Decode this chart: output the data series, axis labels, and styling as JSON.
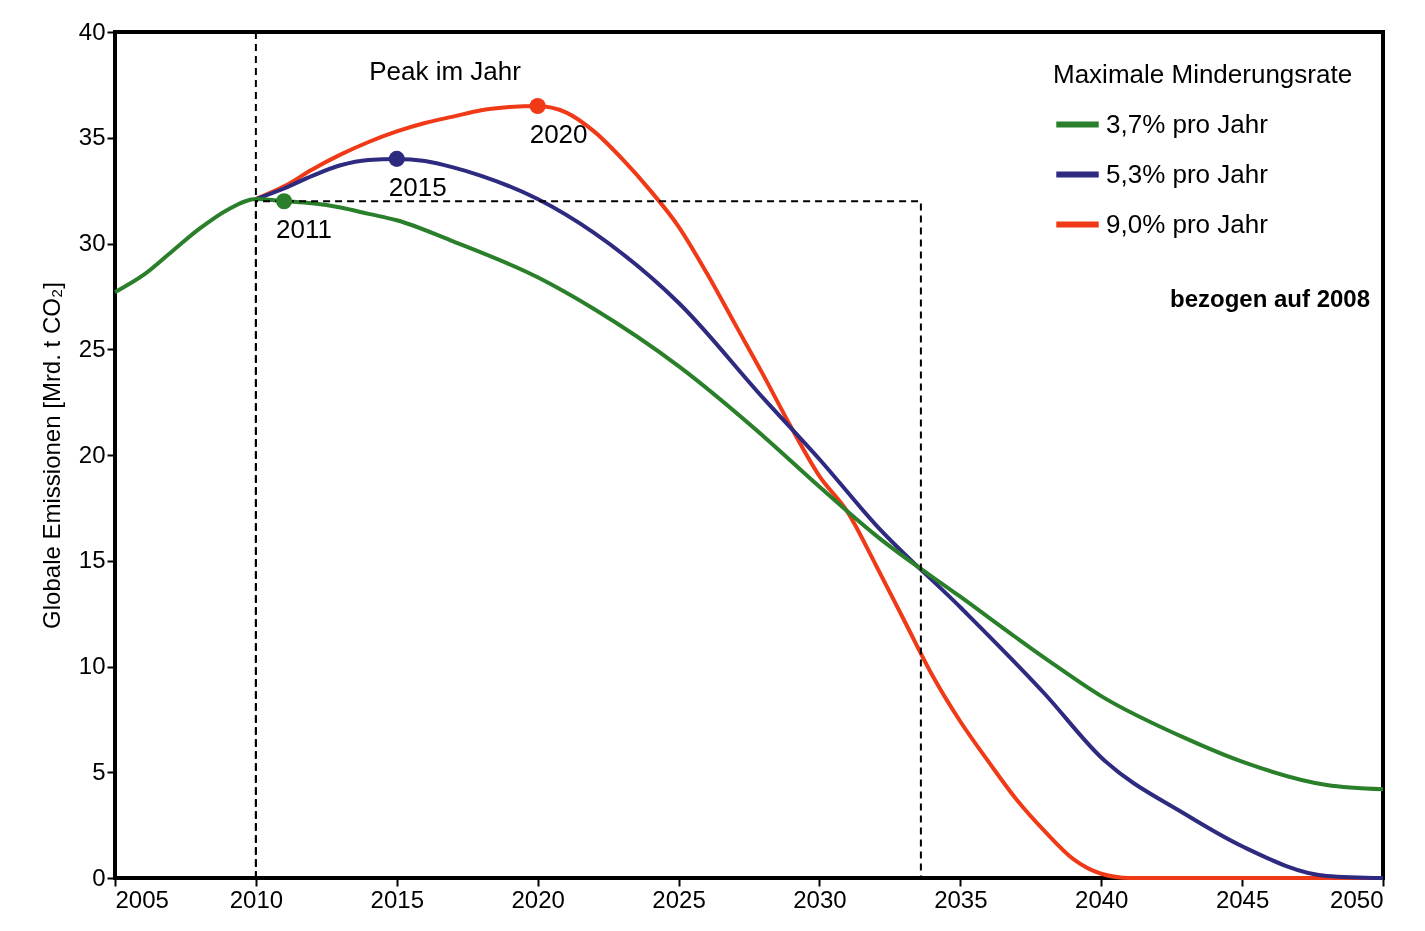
{
  "chart_data": {
    "type": "line",
    "ylabel": "Globale Emissionen [Mrd. t CO₂]",
    "legend_title": "Maximale Minderungsrate",
    "xlim": [
      2005,
      2050
    ],
    "ylim": [
      0,
      40
    ],
    "xticks": [
      2005,
      2010,
      2015,
      2020,
      2025,
      2030,
      2035,
      2040,
      2045,
      2050
    ],
    "yticks": [
      0,
      5,
      10,
      15,
      20,
      25,
      30,
      35,
      40
    ],
    "grid": false,
    "legend": "top right",
    "marker": "none",
    "line_style": "solid",
    "series": [
      {
        "name": "3,7% pro Jahr",
        "color": "#2a7f2a",
        "x": [
          2005,
          2006,
          2007,
          2008,
          2009,
          2010,
          2011,
          2012,
          2013,
          2014,
          2015,
          2017,
          2020,
          2022,
          2025,
          2028,
          2030,
          2032,
          2035,
          2038,
          2040,
          2043,
          2045,
          2048,
          2050
        ],
        "values": [
          27.7,
          28.5,
          29.6,
          30.7,
          31.6,
          32.1,
          32.0,
          31.9,
          31.7,
          31.4,
          31.1,
          30.1,
          28.4,
          26.9,
          24.2,
          20.9,
          18.5,
          16.2,
          13.3,
          10.4,
          8.6,
          6.6,
          5.5,
          4.4,
          4.2
        ]
      },
      {
        "name": "5,3% pro Jahr",
        "color": "#2e2a80",
        "x": [
          2010,
          2011,
          2012,
          2013,
          2014,
          2015,
          2016,
          2017,
          2018,
          2020,
          2022,
          2025,
          2028,
          2030,
          2032,
          2035,
          2038,
          2040,
          2043,
          2045,
          2048,
          2050
        ],
        "values": [
          32.1,
          32.6,
          33.2,
          33.7,
          33.95,
          34.0,
          33.9,
          33.6,
          33.2,
          32.1,
          30.5,
          27.2,
          22.7,
          19.8,
          16.7,
          12.8,
          8.7,
          5.7,
          3.0,
          1.5,
          0.1,
          0
        ]
      },
      {
        "name": "9,0% pro Jahr",
        "color": "#f03a17",
        "x": [
          2010,
          2011,
          2012,
          2013,
          2014,
          2015,
          2016,
          2017,
          2018,
          2019,
          2020,
          2021,
          2022,
          2023,
          2024,
          2025,
          2026,
          2027,
          2028,
          2029,
          2030,
          2031,
          2032,
          2033,
          2034,
          2035,
          2036,
          2037,
          2038,
          2039,
          2040,
          2041,
          2045,
          2050
        ],
        "values": [
          32.1,
          32.7,
          33.5,
          34.2,
          34.8,
          35.3,
          35.7,
          36.0,
          36.3,
          36.45,
          36.5,
          36.2,
          35.3,
          34.0,
          32.5,
          30.8,
          28.6,
          26.2,
          23.8,
          21.3,
          19.0,
          17.3,
          14.8,
          12.2,
          9.6,
          7.4,
          5.5,
          3.7,
          2.2,
          0.9,
          0.2,
          0,
          0,
          0
        ]
      },
      {
        "type": "line",
        "color": "#000000",
        "line_style": "dashed",
        "x": [
          2010,
          2010,
          2033.6,
          2033.6
        ],
        "values": [
          0,
          32,
          32,
          0
        ]
      },
      {
        "type": "scatter",
        "marker": "circle",
        "x": [
          2011,
          2015,
          2020
        ],
        "values": [
          32.0,
          34.0,
          36.5
        ],
        "colors": [
          "#2a7f2a",
          "#2e2a80",
          "#f03a17"
        ]
      }
    ],
    "ref_lines": [
      {
        "axis": "x",
        "value": 2010,
        "color": "#000000",
        "line_style": "dashed"
      }
    ],
    "annotations": [
      "Peak im Jahr",
      "bezogen auf 2008",
      {
        "text": "2011",
        "x": 2011,
        "y": 32.0
      },
      {
        "text": "2015",
        "x": 2015,
        "y": 34.0
      },
      {
        "text": "2020",
        "x": 2020,
        "y": 36.5
      }
    ]
  }
}
